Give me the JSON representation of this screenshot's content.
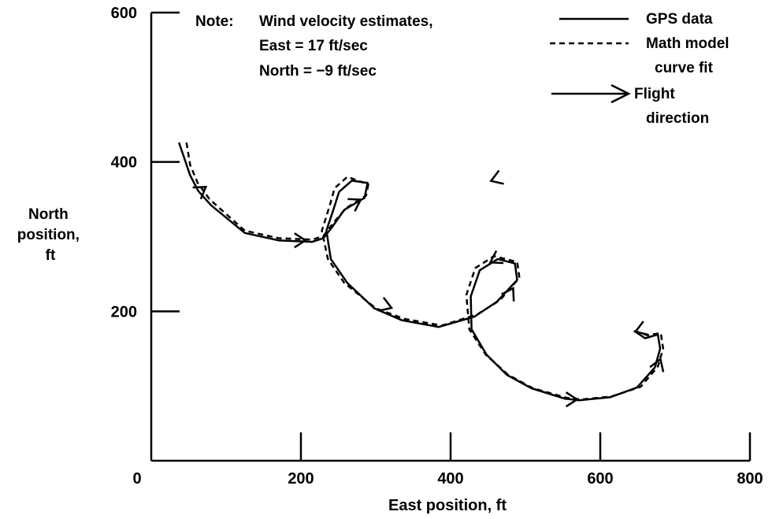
{
  "chart_data": {
    "type": "line",
    "xlabel": "East position, ft",
    "ylabel": [
      "North",
      "position,",
      "ft"
    ],
    "xlim": [
      0,
      800
    ],
    "ylim": [
      0,
      600
    ],
    "x_ticks": [
      0,
      200,
      400,
      600,
      800
    ],
    "y_ticks": [
      200,
      400,
      600
    ],
    "grid": false,
    "legend_position": "top-right",
    "note": [
      "Note:",
      "Wind velocity estimates,",
      "East = 17 ft/sec",
      "North = −9 ft/sec"
    ],
    "legend": [
      {
        "style": "solid",
        "text": [
          "GPS data"
        ]
      },
      {
        "style": "dashed",
        "text": [
          "Math model",
          "curve fit"
        ]
      },
      {
        "style": "arrow",
        "text": [
          "Flight",
          "direction"
        ]
      }
    ],
    "series": [
      {
        "style": "solid",
        "points": [
          [
            37,
            426
          ],
          [
            52,
            382
          ],
          [
            63,
            361
          ],
          [
            80,
            342
          ],
          [
            125,
            305
          ],
          [
            170,
            295
          ],
          [
            215,
            293
          ],
          [
            230,
            298
          ],
          [
            241,
            312
          ],
          [
            258,
            336
          ],
          [
            285,
            352
          ],
          [
            289,
            372
          ],
          [
            268,
            375
          ],
          [
            251,
            360
          ],
          [
            243,
            335
          ],
          [
            234,
            308
          ],
          [
            240,
            270
          ],
          [
            262,
            238
          ],
          [
            298,
            204
          ],
          [
            335,
            188
          ],
          [
            384,
            179
          ],
          [
            432,
            193
          ],
          [
            462,
            213
          ],
          [
            489,
            242
          ],
          [
            486,
            264
          ],
          [
            463,
            270
          ],
          [
            439,
            255
          ],
          [
            427,
            220
          ],
          [
            428,
            176
          ],
          [
            448,
            142
          ],
          [
            475,
            115
          ],
          [
            508,
            97
          ],
          [
            553,
            83
          ],
          [
            572,
            81
          ],
          [
            613,
            85
          ],
          [
            649,
            98
          ],
          [
            673,
            125
          ],
          [
            680,
            150
          ],
          [
            677,
            169
          ],
          [
            660,
            164
          ],
          [
            645,
            174
          ]
        ]
      },
      {
        "style": "dashed",
        "points": [
          [
            47,
            426
          ],
          [
            52,
            396
          ],
          [
            62,
            372
          ],
          [
            78,
            350
          ],
          [
            125,
            308
          ],
          [
            170,
            298
          ],
          [
            215,
            296
          ],
          [
            230,
            301
          ],
          [
            243,
            318
          ],
          [
            260,
            338
          ],
          [
            287,
            355
          ],
          [
            290,
            370
          ],
          [
            262,
            380
          ],
          [
            245,
            365
          ],
          [
            238,
            340
          ],
          [
            228,
            308
          ],
          [
            236,
            270
          ],
          [
            258,
            238
          ],
          [
            300,
            204
          ],
          [
            338,
            190
          ],
          [
            388,
            181
          ],
          [
            436,
            196
          ],
          [
            466,
            215
          ],
          [
            492,
            245
          ],
          [
            489,
            266
          ],
          [
            458,
            274
          ],
          [
            433,
            258
          ],
          [
            421,
            222
          ],
          [
            425,
            176
          ],
          [
            447,
            142
          ],
          [
            477,
            115
          ],
          [
            510,
            97
          ],
          [
            556,
            84
          ],
          [
            575,
            82
          ],
          [
            615,
            86
          ],
          [
            654,
            99
          ],
          [
            677,
            126
          ],
          [
            684,
            150
          ],
          [
            681,
            171
          ],
          [
            663,
            168
          ],
          [
            648,
            173
          ]
        ]
      }
    ],
    "arrows": [
      {
        "at": [
          72,
          366
        ],
        "angle": 35
      },
      {
        "at": [
          205,
          295
        ],
        "angle": 0
      },
      {
        "at": [
          279,
          349
        ],
        "angle": 30
      },
      {
        "at": [
          455,
          375
        ],
        "angle": 200
      },
      {
        "at": [
          320,
          205
        ],
        "angle": -20
      },
      {
        "at": [
          483,
          230
        ],
        "angle": 60
      },
      {
        "at": [
          454,
          266
        ],
        "angle": 210
      },
      {
        "at": [
          568,
          82
        ],
        "angle": 0
      },
      {
        "at": [
          680,
          135
        ],
        "angle": 70
      },
      {
        "at": [
          648,
          173
        ],
        "angle": 200
      }
    ]
  }
}
